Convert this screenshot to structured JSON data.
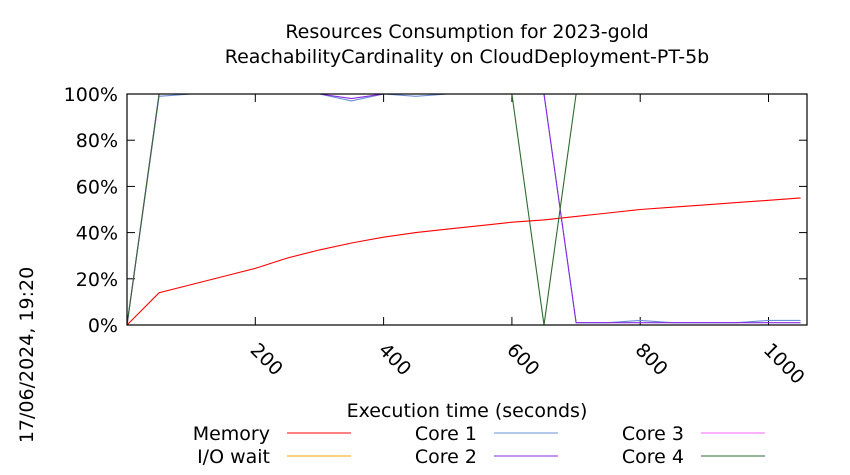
{
  "chart_data": {
    "type": "line",
    "title": "Resources Consumption for 2023-gold",
    "subtitle": "ReachabilityCardinality on CloudDeployment-PT-5b",
    "xlabel": "Execution time (seconds)",
    "ylabel": "",
    "timestamp": "17/06/2024, 19:20",
    "xlim": [
      0,
      1060
    ],
    "ylim": [
      0,
      100
    ],
    "x_ticks": [
      200,
      400,
      600,
      800,
      1000
    ],
    "x_tick_labels": [
      "200",
      "400",
      "600",
      "800",
      "1000"
    ],
    "y_ticks": [
      0,
      20,
      40,
      60,
      80,
      100
    ],
    "y_tick_labels": [
      "0%",
      "20%",
      "40%",
      "60%",
      "80%",
      "100%"
    ],
    "legend_placement": "bottom",
    "series": [
      {
        "name": "Memory",
        "color": "#ff0000",
        "x": [
          0,
          50,
          100,
          150,
          200,
          250,
          300,
          350,
          400,
          450,
          500,
          550,
          600,
          650,
          700,
          750,
          800,
          850,
          900,
          950,
          1000,
          1050
        ],
        "y": [
          0,
          14,
          17.5,
          21,
          24.5,
          29,
          32.5,
          35.5,
          38,
          40,
          41.5,
          43,
          44.5,
          45.5,
          47,
          48.5,
          50,
          51,
          52,
          53,
          54,
          55
        ]
      },
      {
        "name": "I/O wait",
        "color": "#ffa500",
        "x": [
          0,
          50,
          100,
          150,
          200,
          250,
          300,
          350,
          400,
          450,
          500,
          550,
          600,
          650,
          700,
          750,
          800,
          850,
          900,
          950,
          1000,
          1050
        ],
        "y": [
          0,
          0,
          0,
          0,
          0,
          0,
          0,
          0,
          0,
          0,
          0,
          0,
          0,
          0,
          0,
          0,
          0,
          0,
          0,
          0,
          0,
          0
        ]
      },
      {
        "name": "Core 1",
        "color": "#6a8fd8",
        "x": [
          0,
          50,
          100,
          150,
          200,
          250,
          300,
          350,
          400,
          450,
          500,
          550,
          600,
          650,
          700,
          750,
          800,
          850,
          900,
          950,
          1000,
          1050
        ],
        "y": [
          0,
          99,
          100,
          100,
          100,
          100,
          100,
          97,
          100,
          99,
          100,
          100,
          100,
          100,
          1,
          1,
          2,
          1,
          1,
          1,
          2,
          2
        ]
      },
      {
        "name": "Core 2",
        "color": "#8a2be2",
        "x": [
          0,
          50,
          100,
          150,
          200,
          250,
          300,
          350,
          400,
          450,
          500,
          550,
          600,
          650,
          700,
          750,
          800,
          850,
          900,
          950,
          1000,
          1050
        ],
        "y": [
          0,
          100,
          100,
          100,
          100,
          100,
          100,
          98,
          100,
          100,
          100,
          100,
          100,
          100,
          1,
          1,
          1,
          1,
          1,
          1,
          1,
          1
        ]
      },
      {
        "name": "Core 3",
        "color": "#ff66ff",
        "x": [
          0,
          50,
          100,
          150,
          200,
          250,
          300,
          350,
          400,
          450,
          500,
          550,
          600,
          650,
          700,
          750,
          800,
          850,
          900,
          950,
          1000,
          1050
        ],
        "y": [
          0,
          100,
          100,
          100,
          100,
          100,
          100,
          100,
          100,
          100,
          100,
          100,
          100,
          100,
          100,
          100,
          100,
          100,
          100,
          100,
          100,
          100
        ]
      },
      {
        "name": "Core 4",
        "color": "#2e6b2e",
        "x": [
          0,
          50,
          100,
          150,
          200,
          250,
          300,
          350,
          400,
          450,
          500,
          550,
          600,
          650,
          700,
          750,
          800,
          850,
          900,
          950,
          1000,
          1050
        ],
        "y": [
          0,
          100,
          100,
          100,
          100,
          100,
          100,
          100,
          100,
          100,
          100,
          100,
          100,
          0,
          100,
          100,
          100,
          100,
          100,
          100,
          100,
          100
        ]
      }
    ]
  }
}
